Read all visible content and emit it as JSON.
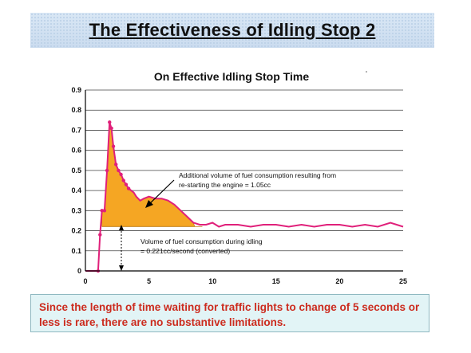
{
  "slide": {
    "title": "The Effectiveness of Idling Stop 2",
    "note": "Since the length of time waiting for traffic lights to change of 5 seconds or less is rare, there are no substantive limitations."
  },
  "colors": {
    "banner": "#cfe0f2",
    "curve": "#e0207a",
    "fill": "#f5a623",
    "note_text": "#cc2b1e",
    "note_bg": "#e2f4f6"
  },
  "chart_data": {
    "type": "line",
    "title": "On Effective Idling Stop Time",
    "xlabel": "",
    "ylabel": "",
    "xlim": [
      0,
      25
    ],
    "ylim": [
      0,
      0.9
    ],
    "xticks": [
      0,
      5,
      10,
      15,
      20,
      25
    ],
    "yticks": [
      0,
      0.1,
      0.2,
      0.3,
      0.4,
      0.5,
      0.6,
      0.7,
      0.8,
      0.9
    ],
    "grid": "horizontal",
    "series": [
      {
        "x": [
          0,
          1.0,
          1.15,
          1.3,
          1.5,
          1.7,
          1.9,
          2.05,
          2.2,
          2.4,
          2.6,
          2.8,
          3.0,
          3.2,
          3.4,
          3.6,
          3.8,
          4.0,
          4.3,
          4.6,
          5.0,
          5.5,
          6.0,
          6.5,
          7.0,
          7.5,
          8.0,
          8.5,
          9.0,
          9.5,
          10,
          10.5,
          11,
          12,
          13,
          14,
          15,
          16,
          17,
          18,
          19,
          20,
          21,
          22,
          23,
          24,
          25
        ],
        "values": [
          0.0,
          0.0,
          0.18,
          0.3,
          0.3,
          0.5,
          0.74,
          0.71,
          0.62,
          0.53,
          0.5,
          0.48,
          0.45,
          0.43,
          0.41,
          0.4,
          0.39,
          0.37,
          0.35,
          0.36,
          0.37,
          0.36,
          0.36,
          0.35,
          0.33,
          0.3,
          0.27,
          0.24,
          0.23,
          0.23,
          0.24,
          0.22,
          0.23,
          0.23,
          0.22,
          0.23,
          0.23,
          0.22,
          0.23,
          0.22,
          0.23,
          0.23,
          0.22,
          0.23,
          0.22,
          0.24,
          0.22
        ]
      }
    ],
    "baseline": 0.221,
    "annotations": [
      {
        "lines": [
          "Additional volume of fuel consumption resulting from",
          "re-starting the engine = 1.05cc"
        ]
      },
      {
        "lines": [
          "Volume of fuel consumption during idling",
          "= 0.221cc/second (converted)"
        ]
      }
    ]
  }
}
